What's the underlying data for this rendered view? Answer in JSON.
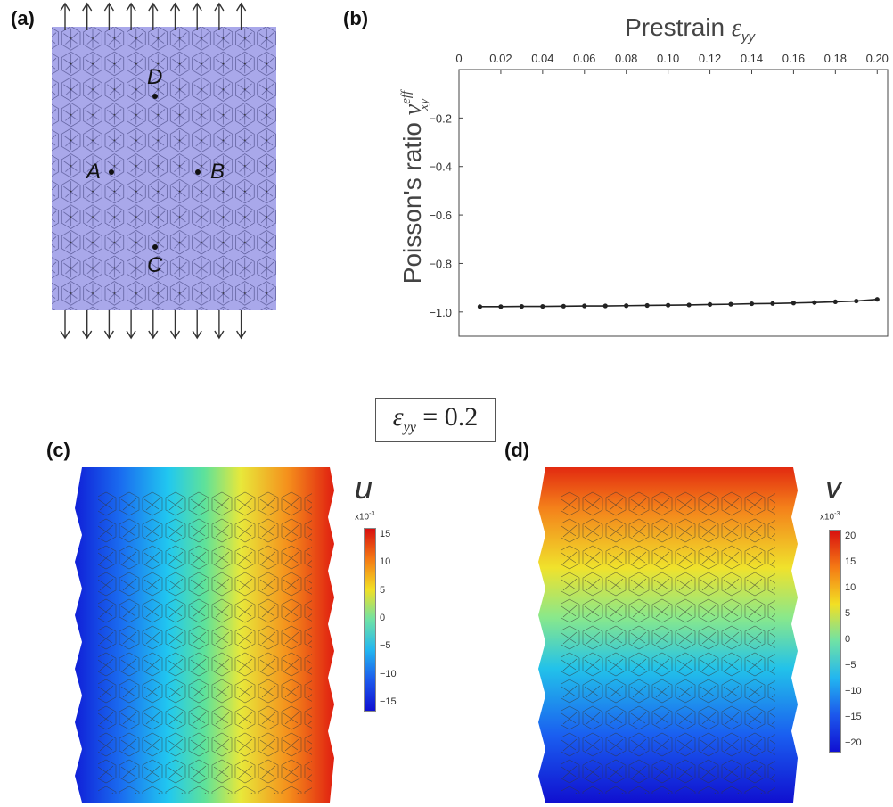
{
  "panels": {
    "a": {
      "label": "(a)",
      "points": [
        {
          "name": "D"
        },
        {
          "name": "A"
        },
        {
          "name": "B"
        },
        {
          "name": "C"
        }
      ],
      "lattice_color": "#a9a8ea",
      "arrow_count": 9
    },
    "b": {
      "label": "(b)"
    },
    "c": {
      "label": "(c)",
      "field": "u",
      "colorbar": {
        "exponent_label": "x10",
        "exponent_power": "-3",
        "ticks": [
          "15",
          "10",
          "5",
          "0",
          "−5",
          "−10",
          "−15"
        ],
        "range": [
          -16,
          16
        ],
        "colormap": "jet",
        "gradient_direction": "horizontal"
      }
    },
    "d": {
      "label": "(d)",
      "field": "v",
      "colorbar": {
        "exponent_label": "x10",
        "exponent_power": "-3",
        "ticks": [
          "20",
          "15",
          "10",
          "5",
          "0",
          "−5",
          "−10",
          "−15",
          "−20"
        ],
        "range": [
          -22,
          22
        ],
        "colormap": "jet",
        "gradient_direction": "vertical"
      }
    }
  },
  "strain_box": {
    "symbol": "ε",
    "subscript": "yy",
    "equals": " = 0.2"
  },
  "chart_data": {
    "type": "line",
    "x_title_text": "Prestrain ",
    "x_title_symbol": "ε",
    "x_title_sub": "yy",
    "y_title_text": "Poisson's ratio ",
    "y_title_symbol": "ν",
    "y_title_sup": "eff",
    "y_title_sub": "xy",
    "x_ticks": [
      "0",
      "0.02",
      "0.04",
      "0.06",
      "0.08",
      "0.10",
      "0.12",
      "0.14",
      "0.16",
      "0.18",
      "0.20"
    ],
    "y_ticks": [
      "−0.2",
      "−0.4",
      "−0.6",
      "−0.8",
      "−1.0"
    ],
    "xlim": [
      0,
      0.205
    ],
    "ylim": [
      -1.1,
      0
    ],
    "x_axis_position": "top",
    "grid": false,
    "series": [
      {
        "x": [
          0.01,
          0.02,
          0.03,
          0.04,
          0.05,
          0.06,
          0.07,
          0.08,
          0.09,
          0.1,
          0.11,
          0.12,
          0.13,
          0.14,
          0.15,
          0.16,
          0.17,
          0.18,
          0.19,
          0.2
        ],
        "y": [
          -0.978,
          -0.978,
          -0.977,
          -0.977,
          -0.976,
          -0.975,
          -0.975,
          -0.974,
          -0.973,
          -0.972,
          -0.971,
          -0.969,
          -0.968,
          -0.966,
          -0.965,
          -0.963,
          -0.961,
          -0.958,
          -0.955,
          -0.948
        ],
        "color": "#222222",
        "marker": "dot"
      }
    ]
  }
}
